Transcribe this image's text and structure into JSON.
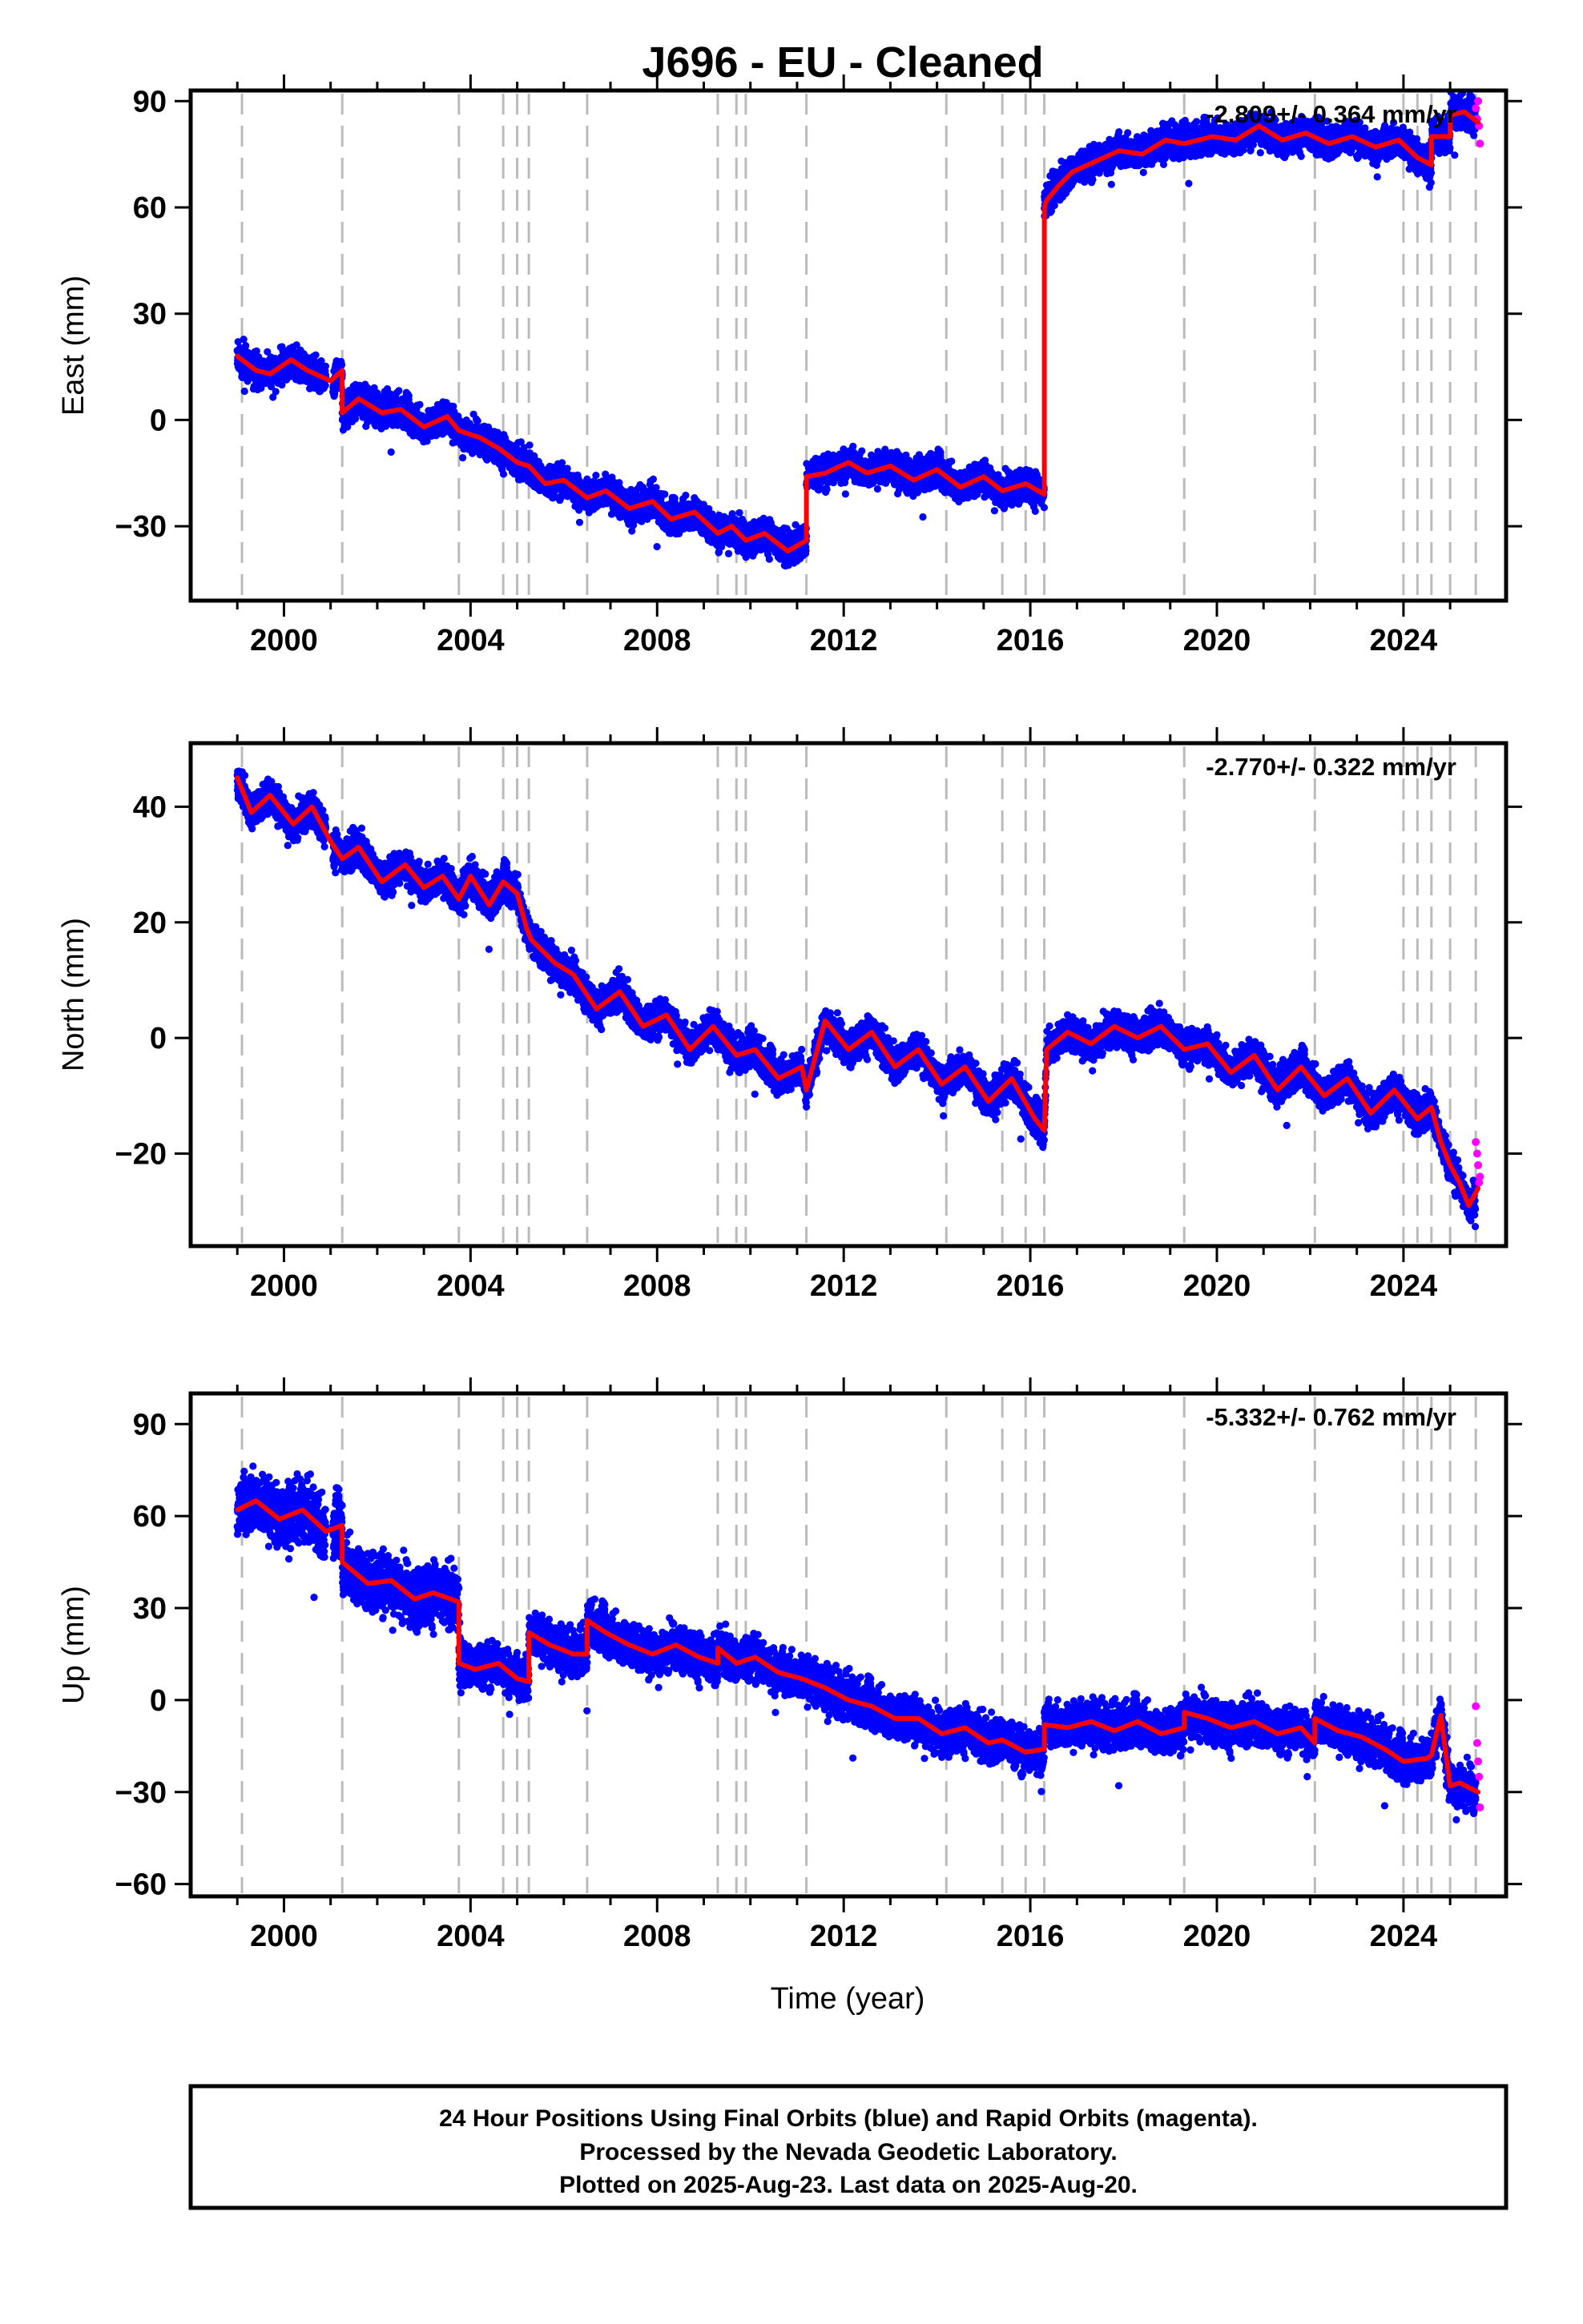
{
  "title": "J696  - EU - Cleaned",
  "xlabel": "Time (year)",
  "footer": {
    "lines": [
      "24 Hour Positions Using Final Orbits (blue) and Rapid Orbits (magenta).",
      "Processed by the Nevada Geodetic Laboratory.",
      "Plotted on 2025-Aug-23. Last data on 2025-Aug-20."
    ]
  },
  "colors": {
    "final_orbits": "#0000ff",
    "rapid_orbits": "#ff00ff",
    "model": "#ff0000",
    "steps": "#bbbbbb",
    "frame": "#000000"
  },
  "chart_data": [
    {
      "type": "scatter",
      "component": "East",
      "ylabel": "East (mm)",
      "rate_label": "-2.809+/- 0.364 mm/yr",
      "xlim": [
        1998.0,
        2026.2
      ],
      "ylim": [
        -51,
        93
      ],
      "xticks": [
        2000,
        2004,
        2008,
        2012,
        2016,
        2020,
        2024
      ],
      "yticks": [
        -30,
        0,
        30,
        60,
        90
      ],
      "grid": false,
      "step_epochs": [
        1999.1,
        2001.25,
        2003.75,
        2004.7,
        2005.0,
        2005.25,
        2006.5,
        2009.3,
        2009.7,
        2009.9,
        2011.2,
        2014.2,
        2015.4,
        2015.9,
        2016.3,
        2019.3,
        2022.1,
        2024.0,
        2024.3,
        2024.6,
        2025.0,
        2025.55
      ],
      "model": {
        "x": [
          1999.0,
          1999.4,
          1999.7,
          2000.15,
          2000.5,
          2001.0,
          2001.25,
          2001.25,
          2001.6,
          2002.1,
          2002.5,
          2003.0,
          2003.5,
          2003.75,
          2004.2,
          2004.6,
          2004.7,
          2005.0,
          2005.25,
          2005.6,
          2006.0,
          2006.5,
          2006.9,
          2007.4,
          2007.9,
          2008.3,
          2008.8,
          2009.3,
          2009.6,
          2009.9,
          2010.3,
          2010.8,
          2011.2,
          2011.2,
          2011.6,
          2012.1,
          2012.5,
          2013.0,
          2013.5,
          2014.0,
          2014.5,
          2015.0,
          2015.4,
          2015.9,
          2016.3,
          2016.3,
          2016.35,
          2016.6,
          2016.9,
          2017.4,
          2017.9,
          2018.4,
          2018.9,
          2019.3,
          2019.9,
          2020.4,
          2020.9,
          2021.4,
          2021.9,
          2022.4,
          2022.9,
          2023.4,
          2023.9,
          2024.3,
          2024.6,
          2024.6,
          2025.0,
          2025.0,
          2025.3,
          2025.6
        ],
        "y": [
          18,
          14,
          13,
          17,
          14,
          11,
          14,
          2,
          6,
          2,
          3,
          -2,
          1,
          -3,
          -5,
          -8,
          -9,
          -12,
          -13,
          -18,
          -17,
          -22,
          -20,
          -25,
          -23,
          -28,
          -26,
          -32,
          -30,
          -34,
          -32,
          -37,
          -34,
          -16,
          -15,
          -12,
          -15,
          -13,
          -17,
          -14,
          -19,
          -16,
          -20,
          -18,
          -21,
          60,
          62,
          66,
          70,
          73,
          76,
          75,
          79,
          78,
          80,
          79,
          83,
          79,
          81,
          78,
          80,
          77,
          79,
          74,
          72,
          80,
          80,
          86,
          87,
          84
        ]
      },
      "rapid_points": {
        "x": [
          2025.55,
          2025.58,
          2025.6,
          2025.62,
          2025.64
        ],
        "y": [
          88,
          85,
          90,
          83,
          78
        ]
      }
    },
    {
      "type": "scatter",
      "component": "North",
      "ylabel": "North (mm)",
      "rate_label": "-2.770+/- 0.322 mm/yr",
      "xlim": [
        1998.0,
        2026.2
      ],
      "ylim": [
        -36,
        51
      ],
      "xticks": [
        2000,
        2004,
        2008,
        2012,
        2016,
        2020,
        2024
      ],
      "yticks": [
        -20,
        0,
        20,
        40
      ],
      "grid": false,
      "step_epochs": [
        1999.1,
        2001.25,
        2003.75,
        2004.7,
        2005.0,
        2005.25,
        2006.5,
        2009.3,
        2009.7,
        2009.9,
        2011.2,
        2014.2,
        2015.4,
        2015.9,
        2016.3,
        2019.3,
        2022.1,
        2024.0,
        2024.3,
        2024.6,
        2025.0,
        2025.55
      ],
      "model": {
        "x": [
          1999.0,
          1999.3,
          1999.7,
          2000.2,
          2000.6,
          2001.0,
          2001.25,
          2001.6,
          2002.1,
          2002.6,
          2003.0,
          2003.4,
          2003.75,
          2004.0,
          2004.4,
          2004.7,
          2005.0,
          2005.2,
          2005.3,
          2005.8,
          2006.2,
          2006.7,
          2007.2,
          2007.7,
          2008.2,
          2008.7,
          2009.2,
          2009.7,
          2010.1,
          2010.6,
          2011.1,
          2011.2,
          2011.6,
          2012.1,
          2012.6,
          2013.1,
          2013.6,
          2014.1,
          2014.6,
          2015.1,
          2015.6,
          2016.1,
          2016.3,
          2016.35,
          2016.8,
          2017.3,
          2017.8,
          2018.3,
          2018.8,
          2019.3,
          2019.8,
          2020.3,
          2020.8,
          2021.3,
          2021.8,
          2022.3,
          2022.8,
          2023.3,
          2023.8,
          2024.3,
          2024.6,
          2024.8,
          2025.0,
          2025.2,
          2025.4,
          2025.6
        ],
        "y": [
          45,
          39,
          42,
          37,
          40,
          34,
          31,
          33,
          27,
          30,
          26,
          28,
          24,
          28,
          23,
          27,
          25,
          19,
          17,
          13,
          11,
          5,
          8,
          2,
          4,
          -2,
          2,
          -3,
          -2,
          -7,
          -5,
          -9,
          3,
          -2,
          1,
          -5,
          -2,
          -8,
          -5,
          -11,
          -7,
          -14,
          -16,
          -2,
          1,
          -1,
          2,
          0,
          2,
          -2,
          -1,
          -6,
          -3,
          -9,
          -5,
          -10,
          -7,
          -13,
          -9,
          -14,
          -12,
          -18,
          -22,
          -25,
          -29,
          -26
        ]
      },
      "rapid_points": {
        "x": [
          2025.55,
          2025.58,
          2025.6,
          2025.62,
          2025.64
        ],
        "y": [
          -18,
          -20,
          -22,
          -25,
          -24
        ]
      }
    },
    {
      "type": "scatter",
      "component": "Up",
      "ylabel": "Up (mm)",
      "rate_label": "-5.332+/- 0.762 mm/yr",
      "xlim": [
        1998.0,
        2026.2
      ],
      "ylim": [
        -64,
        100
      ],
      "xticks": [
        2000,
        2004,
        2008,
        2012,
        2016,
        2020,
        2024
      ],
      "yticks": [
        -60,
        -30,
        0,
        30,
        60,
        90
      ],
      "grid": false,
      "step_epochs": [
        1999.1,
        2001.25,
        2003.75,
        2004.7,
        2005.0,
        2005.25,
        2006.5,
        2009.3,
        2009.7,
        2009.9,
        2011.2,
        2014.2,
        2015.4,
        2015.9,
        2016.3,
        2019.3,
        2022.1,
        2024.0,
        2024.3,
        2024.6,
        2025.0,
        2025.55
      ],
      "model": {
        "x": [
          1999.0,
          1999.4,
          1999.9,
          2000.4,
          2000.9,
          2001.25,
          2001.25,
          2001.8,
          2002.3,
          2002.8,
          2003.2,
          2003.75,
          2003.75,
          2004.1,
          2004.6,
          2005.0,
          2005.25,
          2005.25,
          2005.7,
          2006.2,
          2006.5,
          2006.5,
          2006.9,
          2007.4,
          2007.9,
          2008.4,
          2008.9,
          2009.3,
          2009.3,
          2009.7,
          2010.1,
          2010.6,
          2011.1,
          2011.6,
          2012.1,
          2012.6,
          2013.1,
          2013.6,
          2014.1,
          2014.6,
          2015.1,
          2015.4,
          2015.9,
          2016.3,
          2016.3,
          2016.8,
          2017.3,
          2017.8,
          2018.3,
          2018.8,
          2019.3,
          2019.3,
          2019.8,
          2020.3,
          2020.8,
          2021.3,
          2021.8,
          2022.1,
          2022.1,
          2022.6,
          2023.1,
          2023.6,
          2024.0,
          2024.5,
          2024.6,
          2024.8,
          2025.0,
          2025.2,
          2025.6
        ],
        "y": [
          62,
          65,
          59,
          62,
          55,
          57,
          45,
          38,
          39,
          33,
          35,
          32,
          12,
          10,
          12,
          7,
          6,
          22,
          18,
          15,
          15,
          26,
          22,
          18,
          15,
          18,
          14,
          12,
          17,
          12,
          14,
          9,
          7,
          4,
          0,
          -2,
          -6,
          -6,
          -11,
          -9,
          -14,
          -13,
          -17,
          -16,
          -8,
          -9,
          -7,
          -10,
          -7,
          -11,
          -9,
          -4,
          -6,
          -9,
          -7,
          -11,
          -9,
          -14,
          -6,
          -10,
          -12,
          -16,
          -20,
          -19,
          -18,
          -5,
          -28,
          -27,
          -30
        ]
      },
      "rapid_points": {
        "x": [
          2025.55,
          2025.58,
          2025.6,
          2025.62,
          2025.64
        ],
        "y": [
          -2,
          -14,
          -20,
          -25,
          -35
        ]
      }
    }
  ]
}
